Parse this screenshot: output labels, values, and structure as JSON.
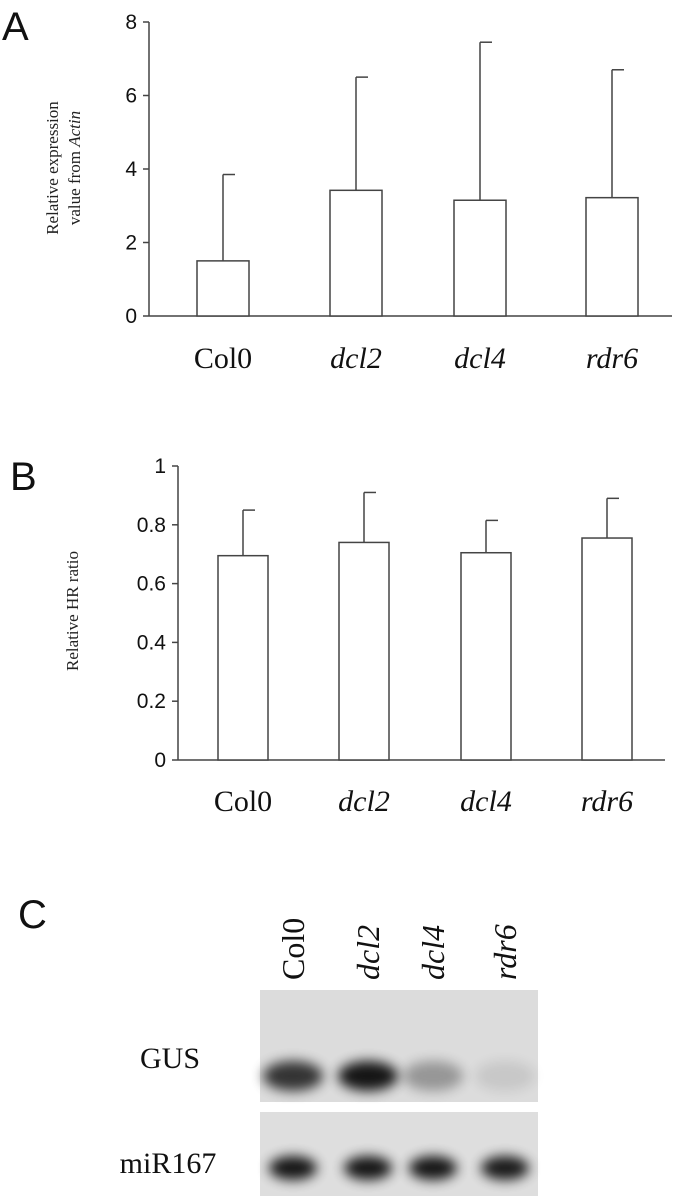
{
  "panels": {
    "a": "A",
    "b": "B",
    "c": "C"
  },
  "chart_data": [
    {
      "type": "bar",
      "categories": [
        "Col0",
        "dcl2",
        "dcl4",
        "rdr6"
      ],
      "values": [
        1.5,
        3.42,
        3.15,
        3.22
      ],
      "errors": [
        2.35,
        3.08,
        4.3,
        3.48
      ],
      "ylabel_line1": "Relative expression",
      "ylabel_line2_prefix": "value from ",
      "ylabel_line2_italic": "Actin",
      "ylim": [
        0,
        8
      ],
      "yticks": [
        "0",
        "2",
        "4",
        "6",
        "8"
      ],
      "grid": false,
      "bar_color": "#ffffff"
    },
    {
      "type": "bar",
      "categories": [
        "Col0",
        "dcl2",
        "dcl4",
        "rdr6"
      ],
      "values": [
        0.695,
        0.74,
        0.705,
        0.755
      ],
      "errors": [
        0.155,
        0.17,
        0.11,
        0.135
      ],
      "ylabel": "Relative HR ratio",
      "ylim": [
        0,
        1
      ],
      "yticks": [
        "0",
        "0.2",
        "0.4",
        "0.6",
        "0.8",
        "1"
      ],
      "grid": false,
      "bar_color": "#ffffff"
    }
  ],
  "blot": {
    "lanes": [
      "Col0",
      "dcl2",
      "dcl4",
      "rdr6"
    ],
    "rows": [
      {
        "label": "GUS",
        "intensities": [
          0.85,
          1.0,
          0.35,
          0.1
        ]
      },
      {
        "label": "miR167",
        "intensities": [
          1.0,
          1.0,
          1.0,
          0.98
        ]
      }
    ]
  }
}
